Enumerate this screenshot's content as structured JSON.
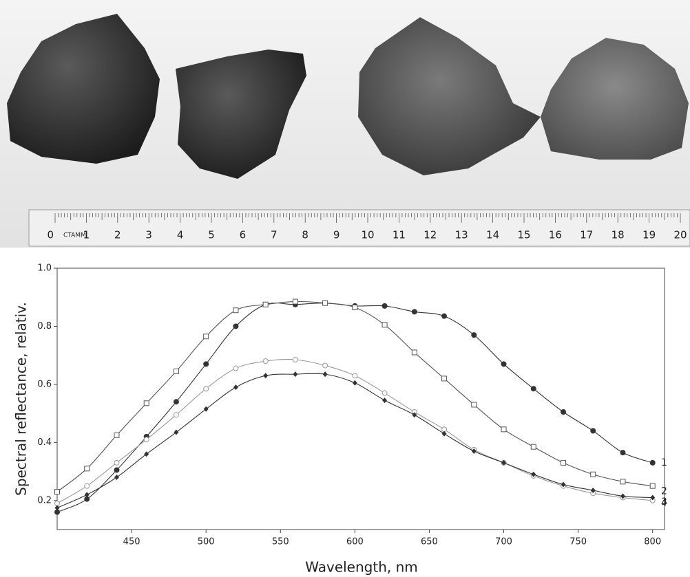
{
  "photo": {
    "ruler": {
      "brand": "CTAMM",
      "labels": [
        "0",
        "1",
        "2",
        "3",
        "4",
        "5",
        "6",
        "7",
        "8",
        "9",
        "10",
        "11",
        "12",
        "13",
        "14",
        "15",
        "16",
        "17",
        "18",
        "19",
        "20"
      ]
    }
  },
  "chart_data": {
    "type": "line",
    "x_label": "Wavelength, nm",
    "y_label": "Spectral reflectance, relativ.",
    "x": [
      400,
      420,
      440,
      460,
      480,
      500,
      520,
      540,
      560,
      580,
      600,
      620,
      640,
      660,
      680,
      700,
      720,
      740,
      760,
      780,
      800
    ],
    "xlim": [
      400,
      808
    ],
    "xticks": [
      450,
      500,
      550,
      600,
      650,
      700,
      750,
      800
    ],
    "ylim": [
      0.1,
      1.0
    ],
    "yticks": [
      0.2,
      0.4,
      0.6,
      0.8,
      {
        "value": 1,
        "label": "1.0"
      }
    ],
    "series": [
      {
        "name": "1",
        "color": "#333333",
        "marker": "circle-filled",
        "values": [
          0.16,
          0.205,
          0.305,
          0.42,
          0.54,
          0.67,
          0.8,
          0.875,
          0.875,
          0.88,
          0.87,
          0.87,
          0.85,
          0.835,
          0.77,
          0.67,
          0.585,
          0.505,
          0.44,
          0.365,
          0.33
        ]
      },
      {
        "name": "2",
        "color": "#555555",
        "marker": "square-open",
        "values": [
          0.23,
          0.31,
          0.425,
          0.535,
          0.645,
          0.765,
          0.855,
          0.875,
          0.885,
          0.88,
          0.865,
          0.805,
          0.71,
          0.62,
          0.53,
          0.445,
          0.385,
          0.33,
          0.29,
          0.265,
          0.25
        ]
      },
      {
        "name": "3",
        "color": "#999999",
        "marker": "circle-open",
        "values": [
          0.19,
          0.25,
          0.33,
          0.41,
          0.495,
          0.585,
          0.655,
          0.68,
          0.685,
          0.665,
          0.63,
          0.57,
          0.505,
          0.445,
          0.375,
          0.33,
          0.285,
          0.25,
          0.225,
          0.21,
          0.2
        ]
      },
      {
        "name": "4",
        "color": "#333333",
        "marker": "diamond-filled",
        "values": [
          0.175,
          0.22,
          0.28,
          0.36,
          0.435,
          0.515,
          0.59,
          0.63,
          0.635,
          0.635,
          0.605,
          0.545,
          0.495,
          0.43,
          0.37,
          0.33,
          0.29,
          0.255,
          0.235,
          0.215,
          0.21
        ]
      }
    ]
  }
}
